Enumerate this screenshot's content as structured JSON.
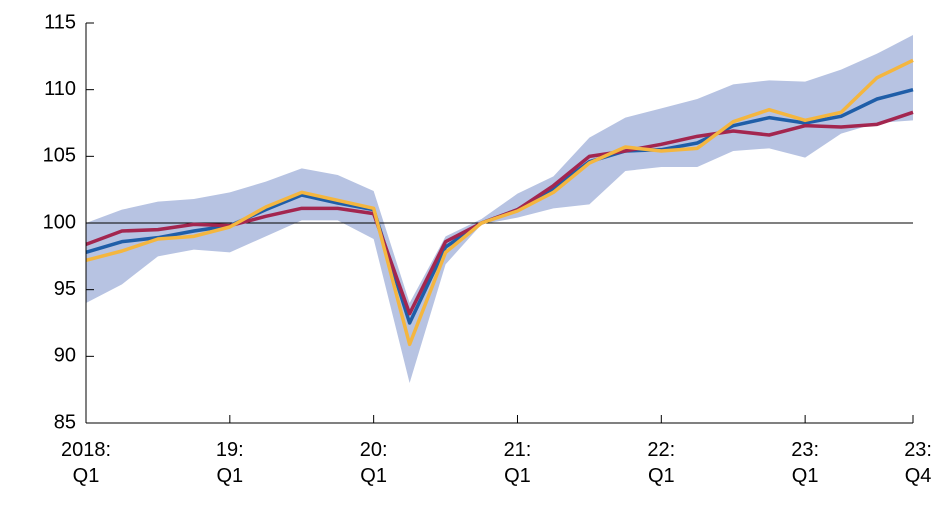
{
  "chart_data": {
    "type": "line",
    "categories": [
      "2018:\nQ1",
      null,
      null,
      null,
      "19:\nQ1",
      null,
      null,
      null,
      "20:\nQ1",
      null,
      null,
      null,
      "21:\nQ1",
      null,
      null,
      null,
      "22:\nQ1",
      null,
      null,
      null,
      "23:\nQ1",
      null,
      null,
      "23:\nQ4"
    ],
    "band": {
      "color": "#b7c3e2",
      "lower": [
        94.0,
        95.4,
        97.5,
        98.0,
        97.8,
        99.0,
        100.2,
        100.2,
        98.8,
        88.0,
        96.9,
        99.9,
        100.4,
        101.1,
        101.4,
        103.9,
        104.2,
        104.2,
        105.4,
        105.6,
        104.9,
        106.7,
        107.5,
        107.7
      ],
      "upper": [
        100.0,
        101.0,
        101.6,
        101.8,
        102.3,
        103.1,
        104.1,
        103.6,
        102.4,
        94.0,
        99.0,
        100.3,
        102.2,
        103.5,
        106.4,
        107.9,
        108.6,
        109.3,
        110.4,
        110.7,
        110.6,
        111.5,
        112.7,
        114.1
      ]
    },
    "series": [
      {
        "color": "#1f5ea8",
        "values": [
          97.8,
          98.6,
          98.9,
          99.4,
          99.8,
          101.0,
          102.1,
          101.5,
          101.0,
          92.5,
          98.2,
          100.0,
          101.0,
          102.6,
          104.6,
          105.4,
          105.5,
          106.0,
          107.3,
          107.9,
          107.5,
          108.0,
          109.3,
          110.0
        ]
      },
      {
        "color": "#a3264f",
        "values": [
          98.4,
          99.4,
          99.5,
          99.9,
          99.8,
          100.5,
          101.1,
          101.1,
          100.7,
          93.2,
          98.6,
          100.0,
          101.0,
          102.8,
          105.0,
          105.4,
          105.9,
          106.5,
          106.9,
          106.6,
          107.3,
          107.2,
          107.4,
          108.3
        ]
      },
      {
        "color": "#f4b63f",
        "values": [
          97.2,
          97.9,
          98.8,
          99.0,
          99.7,
          101.2,
          102.3,
          101.7,
          101.1,
          90.9,
          97.8,
          100.0,
          100.9,
          102.3,
          104.5,
          105.7,
          105.4,
          105.6,
          107.6,
          108.5,
          107.7,
          108.3,
          110.9,
          112.2
        ]
      }
    ],
    "reference_line": 100,
    "ylim": [
      85,
      115
    ],
    "yticks": [
      85,
      90,
      95,
      100,
      105,
      110,
      115
    ]
  }
}
